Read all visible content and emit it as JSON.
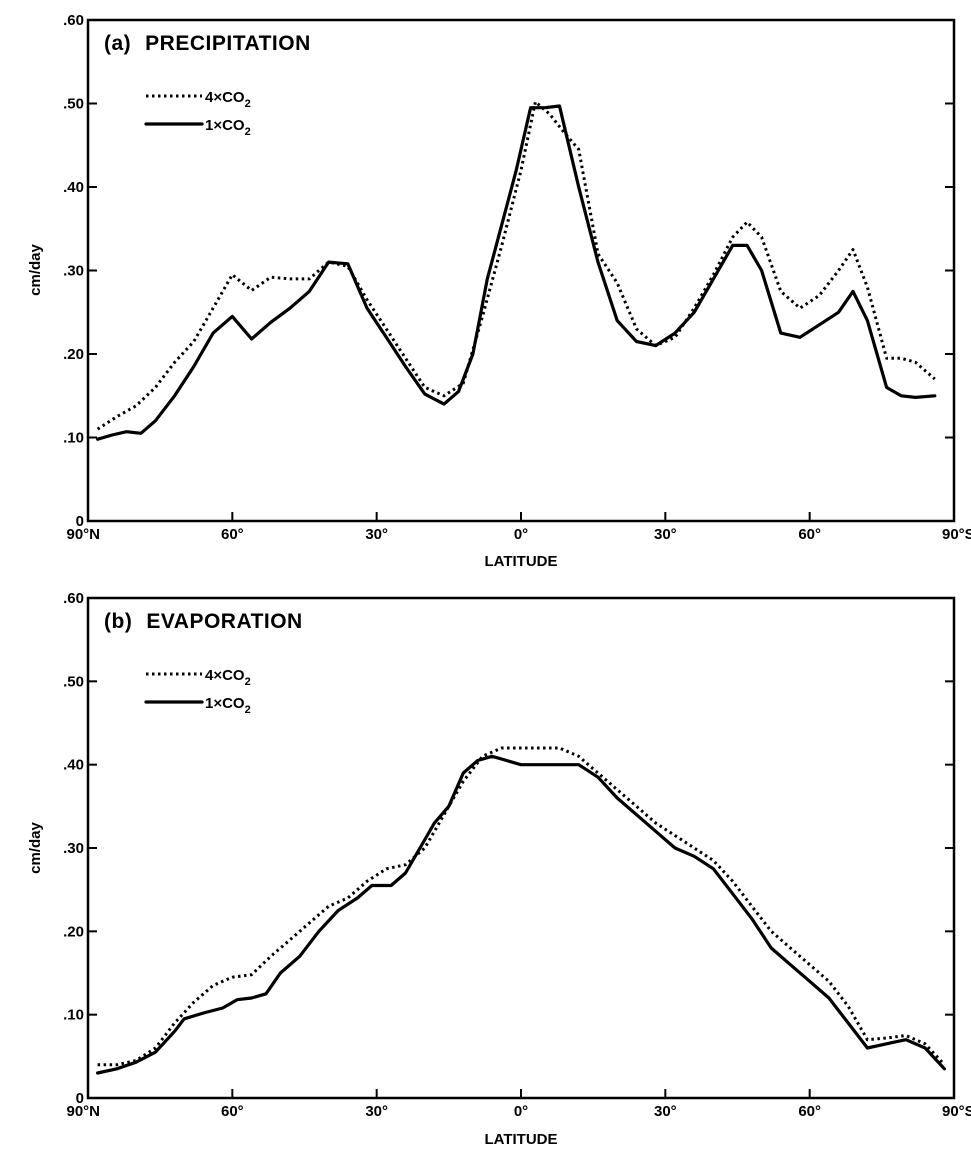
{
  "chart_data": [
    {
      "type": "line",
      "panel_label": "(a)",
      "title": "PRECIPITATION",
      "xlabel": "LATITUDE",
      "ylabel": "cm/day",
      "xlim": [
        -90,
        90
      ],
      "ylim": [
        0,
        0.6
      ],
      "grid": false,
      "legend_position": "top-left",
      "x_ticks": [
        {
          "value": -90,
          "label": "90°N"
        },
        {
          "value": -60,
          "label": "60°"
        },
        {
          "value": -30,
          "label": "30°"
        },
        {
          "value": 0,
          "label": "0°"
        },
        {
          "value": 30,
          "label": "30°"
        },
        {
          "value": 60,
          "label": "60°"
        },
        {
          "value": 90,
          "label": "90°S"
        }
      ],
      "y_ticks": [
        {
          "value": 0,
          "label": "0"
        },
        {
          "value": 0.1,
          "label": ".10"
        },
        {
          "value": 0.2,
          "label": ".20"
        },
        {
          "value": 0.3,
          "label": ".30"
        },
        {
          "value": 0.4,
          "label": ".40"
        },
        {
          "value": 0.5,
          "label": ".50"
        },
        {
          "value": 0.6,
          "label": ".60"
        }
      ],
      "series": [
        {
          "name": "4×CO2",
          "style": "dotted",
          "x": [
            -88,
            -84,
            -80,
            -76,
            -72,
            -68,
            -64,
            -60,
            -56,
            -52,
            -48,
            -44,
            -40,
            -36,
            -32,
            -28,
            -24,
            -20,
            -16,
            -12,
            -8,
            -4,
            0,
            3,
            6,
            9,
            12,
            16,
            20,
            24,
            28,
            32,
            36,
            40,
            44,
            47,
            50,
            54,
            58,
            62,
            66,
            69,
            72,
            76,
            79,
            82,
            86
          ],
          "y": [
            0.11,
            0.125,
            0.138,
            0.16,
            0.19,
            0.215,
            0.255,
            0.295,
            0.276,
            0.292,
            0.29,
            0.29,
            0.31,
            0.305,
            0.265,
            0.23,
            0.195,
            0.16,
            0.15,
            0.165,
            0.245,
            0.33,
            0.42,
            0.502,
            0.487,
            0.465,
            0.445,
            0.32,
            0.285,
            0.23,
            0.21,
            0.22,
            0.255,
            0.295,
            0.34,
            0.358,
            0.34,
            0.275,
            0.255,
            0.27,
            0.3,
            0.325,
            0.28,
            0.195,
            0.195,
            0.19,
            0.17
          ]
        },
        {
          "name": "1×CO2",
          "style": "solid",
          "x": [
            -88,
            -85,
            -82,
            -79,
            -76,
            -72,
            -68,
            -64,
            -60,
            -56,
            -52,
            -48,
            -44,
            -40,
            -36,
            -32,
            -28,
            -24,
            -20,
            -16,
            -13,
            -10,
            -7,
            -4,
            -1,
            2,
            5,
            8,
            12,
            16,
            20,
            24,
            28,
            32,
            36,
            40,
            44,
            47,
            50,
            54,
            58,
            62,
            66,
            69,
            72,
            76,
            79,
            82,
            86
          ],
          "y": [
            0.098,
            0.103,
            0.107,
            0.105,
            0.12,
            0.15,
            0.185,
            0.225,
            0.245,
            0.218,
            0.238,
            0.255,
            0.275,
            0.31,
            0.308,
            0.255,
            0.22,
            0.185,
            0.152,
            0.14,
            0.155,
            0.2,
            0.29,
            0.355,
            0.42,
            0.495,
            0.495,
            0.497,
            0.4,
            0.31,
            0.24,
            0.215,
            0.21,
            0.225,
            0.25,
            0.29,
            0.33,
            0.33,
            0.3,
            0.225,
            0.22,
            0.235,
            0.25,
            0.275,
            0.24,
            0.16,
            0.15,
            0.148,
            0.15
          ]
        }
      ]
    },
    {
      "type": "line",
      "panel_label": "(b)",
      "title": "EVAPORATION",
      "xlabel": "LATITUDE",
      "ylabel": "cm/day",
      "xlim": [
        -90,
        90
      ],
      "ylim": [
        0,
        0.6
      ],
      "grid": false,
      "legend_position": "top-left",
      "x_ticks": [
        {
          "value": -90,
          "label": "90°N"
        },
        {
          "value": -60,
          "label": "60°"
        },
        {
          "value": -30,
          "label": "30°"
        },
        {
          "value": 0,
          "label": "0°"
        },
        {
          "value": 30,
          "label": "30°"
        },
        {
          "value": 60,
          "label": "60°"
        },
        {
          "value": 90,
          "label": "90°S"
        }
      ],
      "y_ticks": [
        {
          "value": 0,
          "label": "0"
        },
        {
          "value": 0.1,
          "label": ".10"
        },
        {
          "value": 0.2,
          "label": ".20"
        },
        {
          "value": 0.3,
          "label": ".30"
        },
        {
          "value": 0.4,
          "label": ".40"
        },
        {
          "value": 0.5,
          "label": ".50"
        },
        {
          "value": 0.6,
          "label": ".60"
        }
      ],
      "series": [
        {
          "name": "4×CO2",
          "style": "dotted",
          "x": [
            -88,
            -84,
            -80,
            -76,
            -72,
            -68,
            -64,
            -60,
            -56,
            -52,
            -48,
            -44,
            -40,
            -36,
            -32,
            -28,
            -24,
            -20,
            -16,
            -12,
            -8,
            -4,
            0,
            4,
            8,
            12,
            16,
            20,
            24,
            28,
            32,
            36,
            40,
            44,
            48,
            52,
            56,
            60,
            64,
            68,
            72,
            76,
            80,
            84,
            88
          ],
          "y": [
            0.04,
            0.04,
            0.045,
            0.06,
            0.09,
            0.115,
            0.135,
            0.145,
            0.148,
            0.17,
            0.19,
            0.21,
            0.23,
            0.24,
            0.26,
            0.275,
            0.28,
            0.3,
            0.34,
            0.38,
            0.41,
            0.42,
            0.42,
            0.42,
            0.42,
            0.41,
            0.39,
            0.37,
            0.35,
            0.33,
            0.315,
            0.3,
            0.285,
            0.26,
            0.23,
            0.2,
            0.18,
            0.16,
            0.14,
            0.11,
            0.07,
            0.072,
            0.075,
            0.065,
            0.04
          ]
        },
        {
          "name": "1×CO2",
          "style": "solid",
          "x": [
            -88,
            -84,
            -80,
            -76,
            -72,
            -70,
            -66,
            -62,
            -59,
            -56,
            -53,
            -50,
            -46,
            -42,
            -38,
            -34,
            -31,
            -27,
            -24,
            -21,
            -18,
            -15,
            -12,
            -9,
            -6,
            -3,
            0,
            4,
            8,
            12,
            16,
            20,
            24,
            28,
            32,
            36,
            40,
            44,
            48,
            52,
            56,
            60,
            64,
            68,
            72,
            76,
            80,
            84,
            88
          ],
          "y": [
            0.03,
            0.035,
            0.043,
            0.055,
            0.08,
            0.095,
            0.102,
            0.108,
            0.118,
            0.12,
            0.125,
            0.15,
            0.17,
            0.2,
            0.225,
            0.24,
            0.255,
            0.255,
            0.27,
            0.3,
            0.33,
            0.35,
            0.39,
            0.405,
            0.41,
            0.405,
            0.4,
            0.4,
            0.4,
            0.4,
            0.385,
            0.36,
            0.34,
            0.32,
            0.3,
            0.29,
            0.275,
            0.245,
            0.215,
            0.18,
            0.16,
            0.14,
            0.12,
            0.09,
            0.06,
            0.065,
            0.07,
            0.06,
            0.035
          ]
        }
      ]
    }
  ]
}
